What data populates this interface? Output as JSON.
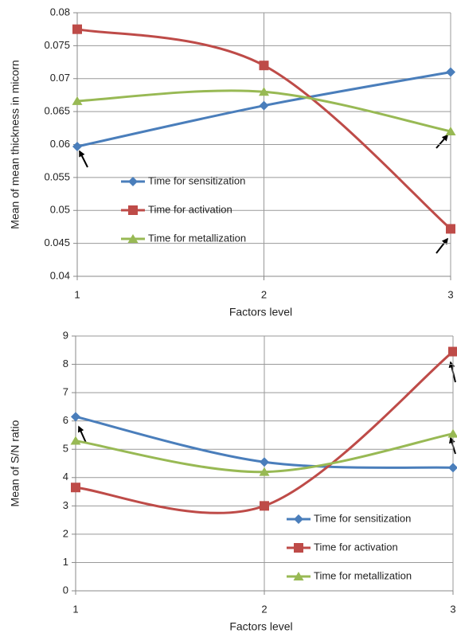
{
  "chart_data": [
    {
      "type": "line",
      "ylabel": "Mean of mean thickness in micorn",
      "xlabel": "Factors level",
      "x": [
        1,
        2,
        3
      ],
      "xlim": [
        1,
        3
      ],
      "xticks": [
        1,
        2,
        3
      ],
      "ylim": [
        0.04,
        0.08
      ],
      "yticks": [
        0.04,
        0.045,
        0.05,
        0.055,
        0.06,
        0.065,
        0.07,
        0.075,
        0.08
      ],
      "grid": true,
      "smooth": true,
      "legend": "center-left",
      "series": [
        {
          "name": "Time for sensitization",
          "color": "#4a7ebb",
          "marker": "diamond",
          "values": [
            0.0597,
            0.0659,
            0.071
          ]
        },
        {
          "name": "Time for activation",
          "color": "#be4b48",
          "marker": "square",
          "values": [
            0.0775,
            0.072,
            0.0472
          ]
        },
        {
          "name": "Time for metallization",
          "color": "#98b954",
          "marker": "triangle",
          "values": [
            0.0666,
            0.068,
            0.062
          ]
        }
      ]
    },
    {
      "type": "line",
      "ylabel": "Mean of S/N ratio",
      "xlabel": "Factors level",
      "x": [
        1,
        2,
        3
      ],
      "xlim": [
        1,
        3
      ],
      "xticks": [
        1,
        2,
        3
      ],
      "ylim": [
        0,
        9
      ],
      "yticks": [
        0,
        1,
        2,
        3,
        4,
        5,
        6,
        7,
        8,
        9
      ],
      "grid": true,
      "smooth": true,
      "legend": "lower-right",
      "series": [
        {
          "name": "Time for sensitization",
          "color": "#4a7ebb",
          "marker": "diamond",
          "values": [
            6.15,
            4.55,
            4.35
          ]
        },
        {
          "name": "Time for activation",
          "color": "#be4b48",
          "marker": "square",
          "values": [
            3.65,
            3.0,
            8.45
          ]
        },
        {
          "name": "Time for metallization",
          "color": "#98b954",
          "marker": "triangle",
          "values": [
            5.3,
            4.2,
            5.55
          ]
        }
      ]
    }
  ]
}
